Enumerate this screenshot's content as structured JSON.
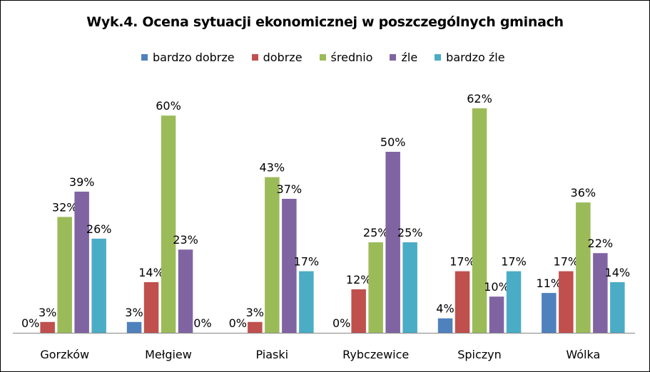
{
  "chart_data": {
    "type": "bar",
    "title": "Wyk.4. Ocena sytuacji ekonomicznej w poszczególnych gminach",
    "legend_position": "top",
    "grid": false,
    "categories": [
      "Gorzków",
      "Mełgiew",
      "Piaski",
      "Rybczewice",
      "Spiczyn",
      "Wólka"
    ],
    "ylim": [
      0,
      65
    ],
    "series": [
      {
        "name": "bardzo dobrze",
        "color": "#4F81BD",
        "values": [
          0,
          3,
          0,
          0,
          4,
          11
        ],
        "labels": [
          "0%",
          "3%",
          "0%",
          "0%",
          "4%",
          "11%"
        ]
      },
      {
        "name": "dobrze",
        "color": "#C0504D",
        "values": [
          3,
          14,
          3,
          12,
          17,
          17
        ],
        "labels": [
          "3%",
          "14%",
          "3%",
          "12%",
          "17%",
          "17%"
        ]
      },
      {
        "name": "średnio",
        "color": "#9BBB59",
        "values": [
          32,
          60,
          43,
          25,
          62,
          36
        ],
        "labels": [
          "32%",
          "60%",
          "43%",
          "25%",
          "62%",
          "36%"
        ]
      },
      {
        "name": "źle",
        "color": "#8064A2",
        "values": [
          39,
          23,
          37,
          50,
          10,
          22
        ],
        "labels": [
          "39%",
          "23%",
          "37%",
          "50%",
          "10%",
          "22%"
        ]
      },
      {
        "name": "bardzo źle",
        "color": "#4BACC6",
        "values": [
          26,
          0,
          17,
          25,
          17,
          14
        ],
        "labels": [
          "26%",
          "0%",
          "17%",
          "25%",
          "17%",
          "14%"
        ]
      }
    ]
  }
}
